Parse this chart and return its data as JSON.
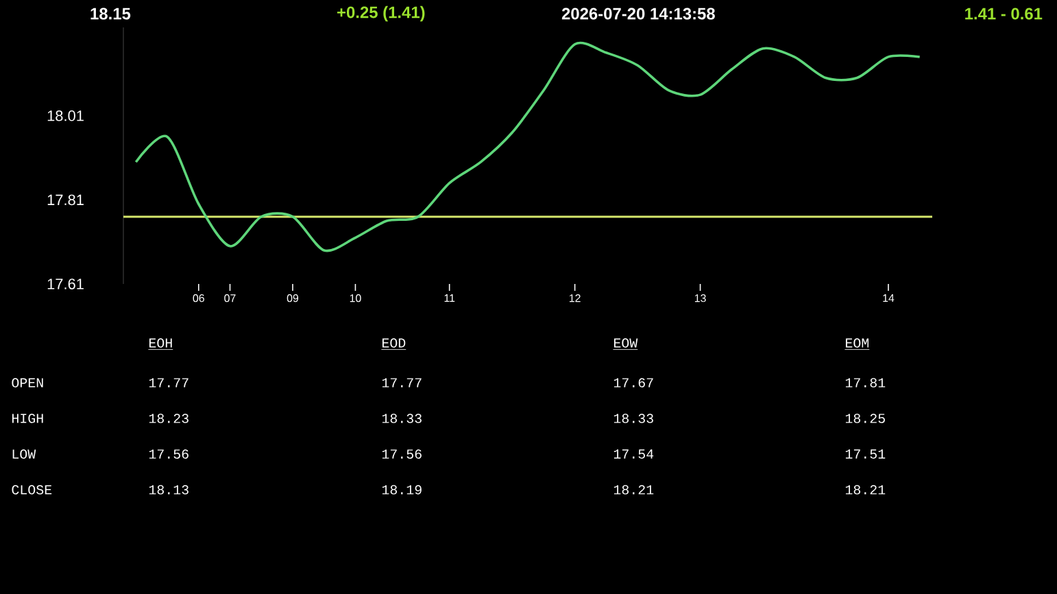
{
  "chart_data": {
    "type": "line",
    "title": "18.15",
    "subtitle": "+0.25  (1.41)",
    "categories": [
      null,
      null,
      "06",
      "07",
      null,
      "09",
      null,
      "10",
      null,
      null,
      "11",
      null,
      null,
      null,
      "12",
      null,
      null,
      null,
      "13",
      null,
      null,
      null,
      null,
      null,
      "14",
      null
    ],
    "values": [
      17.9,
      17.96,
      17.8,
      17.7,
      17.77,
      17.77,
      17.69,
      17.72,
      17.76,
      17.77,
      17.85,
      17.9,
      17.97,
      18.07,
      18.18,
      18.16,
      18.13,
      18.07,
      18.06,
      18.12,
      18.17,
      18.15,
      18.1,
      18.1,
      18.15,
      18.15
    ],
    "color": "#5ed67a",
    "marker": "none",
    "line_style": "solid",
    "ylim": [
      17.61,
      18.22
    ],
    "yticks": [
      17.61,
      17.81,
      18.01
    ],
    "ref_lines": [
      {
        "axis": "y",
        "value": 17.77,
        "color": "#d6e86c"
      }
    ],
    "annotations": [
      "2026-07-20   14:13:58",
      "1.41   -   0.61",
      "EOH",
      "EOD",
      "EOW",
      "EOM",
      "OPEN",
      "17.77",
      "17.77",
      "17.67",
      "17.81",
      "HIGH",
      "18.23",
      "18.33",
      "18.33",
      "18.25",
      "LOW",
      "17.56",
      "17.56",
      "17.54",
      "17.51",
      "CLOSE",
      "18.13",
      "18.19",
      "18.21",
      "18.21"
    ]
  }
}
